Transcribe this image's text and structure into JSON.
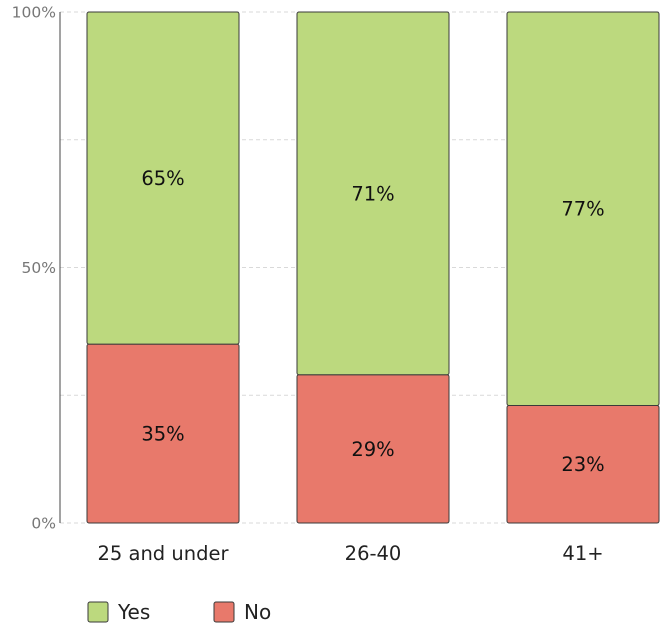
{
  "chart_data": {
    "type": "bar",
    "stacked": true,
    "categories": [
      "25 and under",
      "26-40",
      "41+"
    ],
    "series": [
      {
        "name": "No",
        "values": [
          35,
          29,
          23
        ],
        "labels": [
          "35%",
          "29%",
          "23%"
        ],
        "color": "#e8796b"
      },
      {
        "name": "Yes",
        "values": [
          65,
          71,
          77
        ],
        "labels": [
          "65%",
          "71%",
          "77%"
        ],
        "color": "#bcd97e"
      }
    ],
    "ylim": [
      0,
      100
    ],
    "yticks": [
      0,
      25,
      50,
      75,
      100
    ],
    "ytick_labels": {
      "0": "0%",
      "50": "50%",
      "100": "100%"
    },
    "grid": true,
    "legend": {
      "position": "bottom-left",
      "order": [
        "Yes",
        "No"
      ]
    },
    "title": "",
    "xlabel": "",
    "ylabel": ""
  }
}
